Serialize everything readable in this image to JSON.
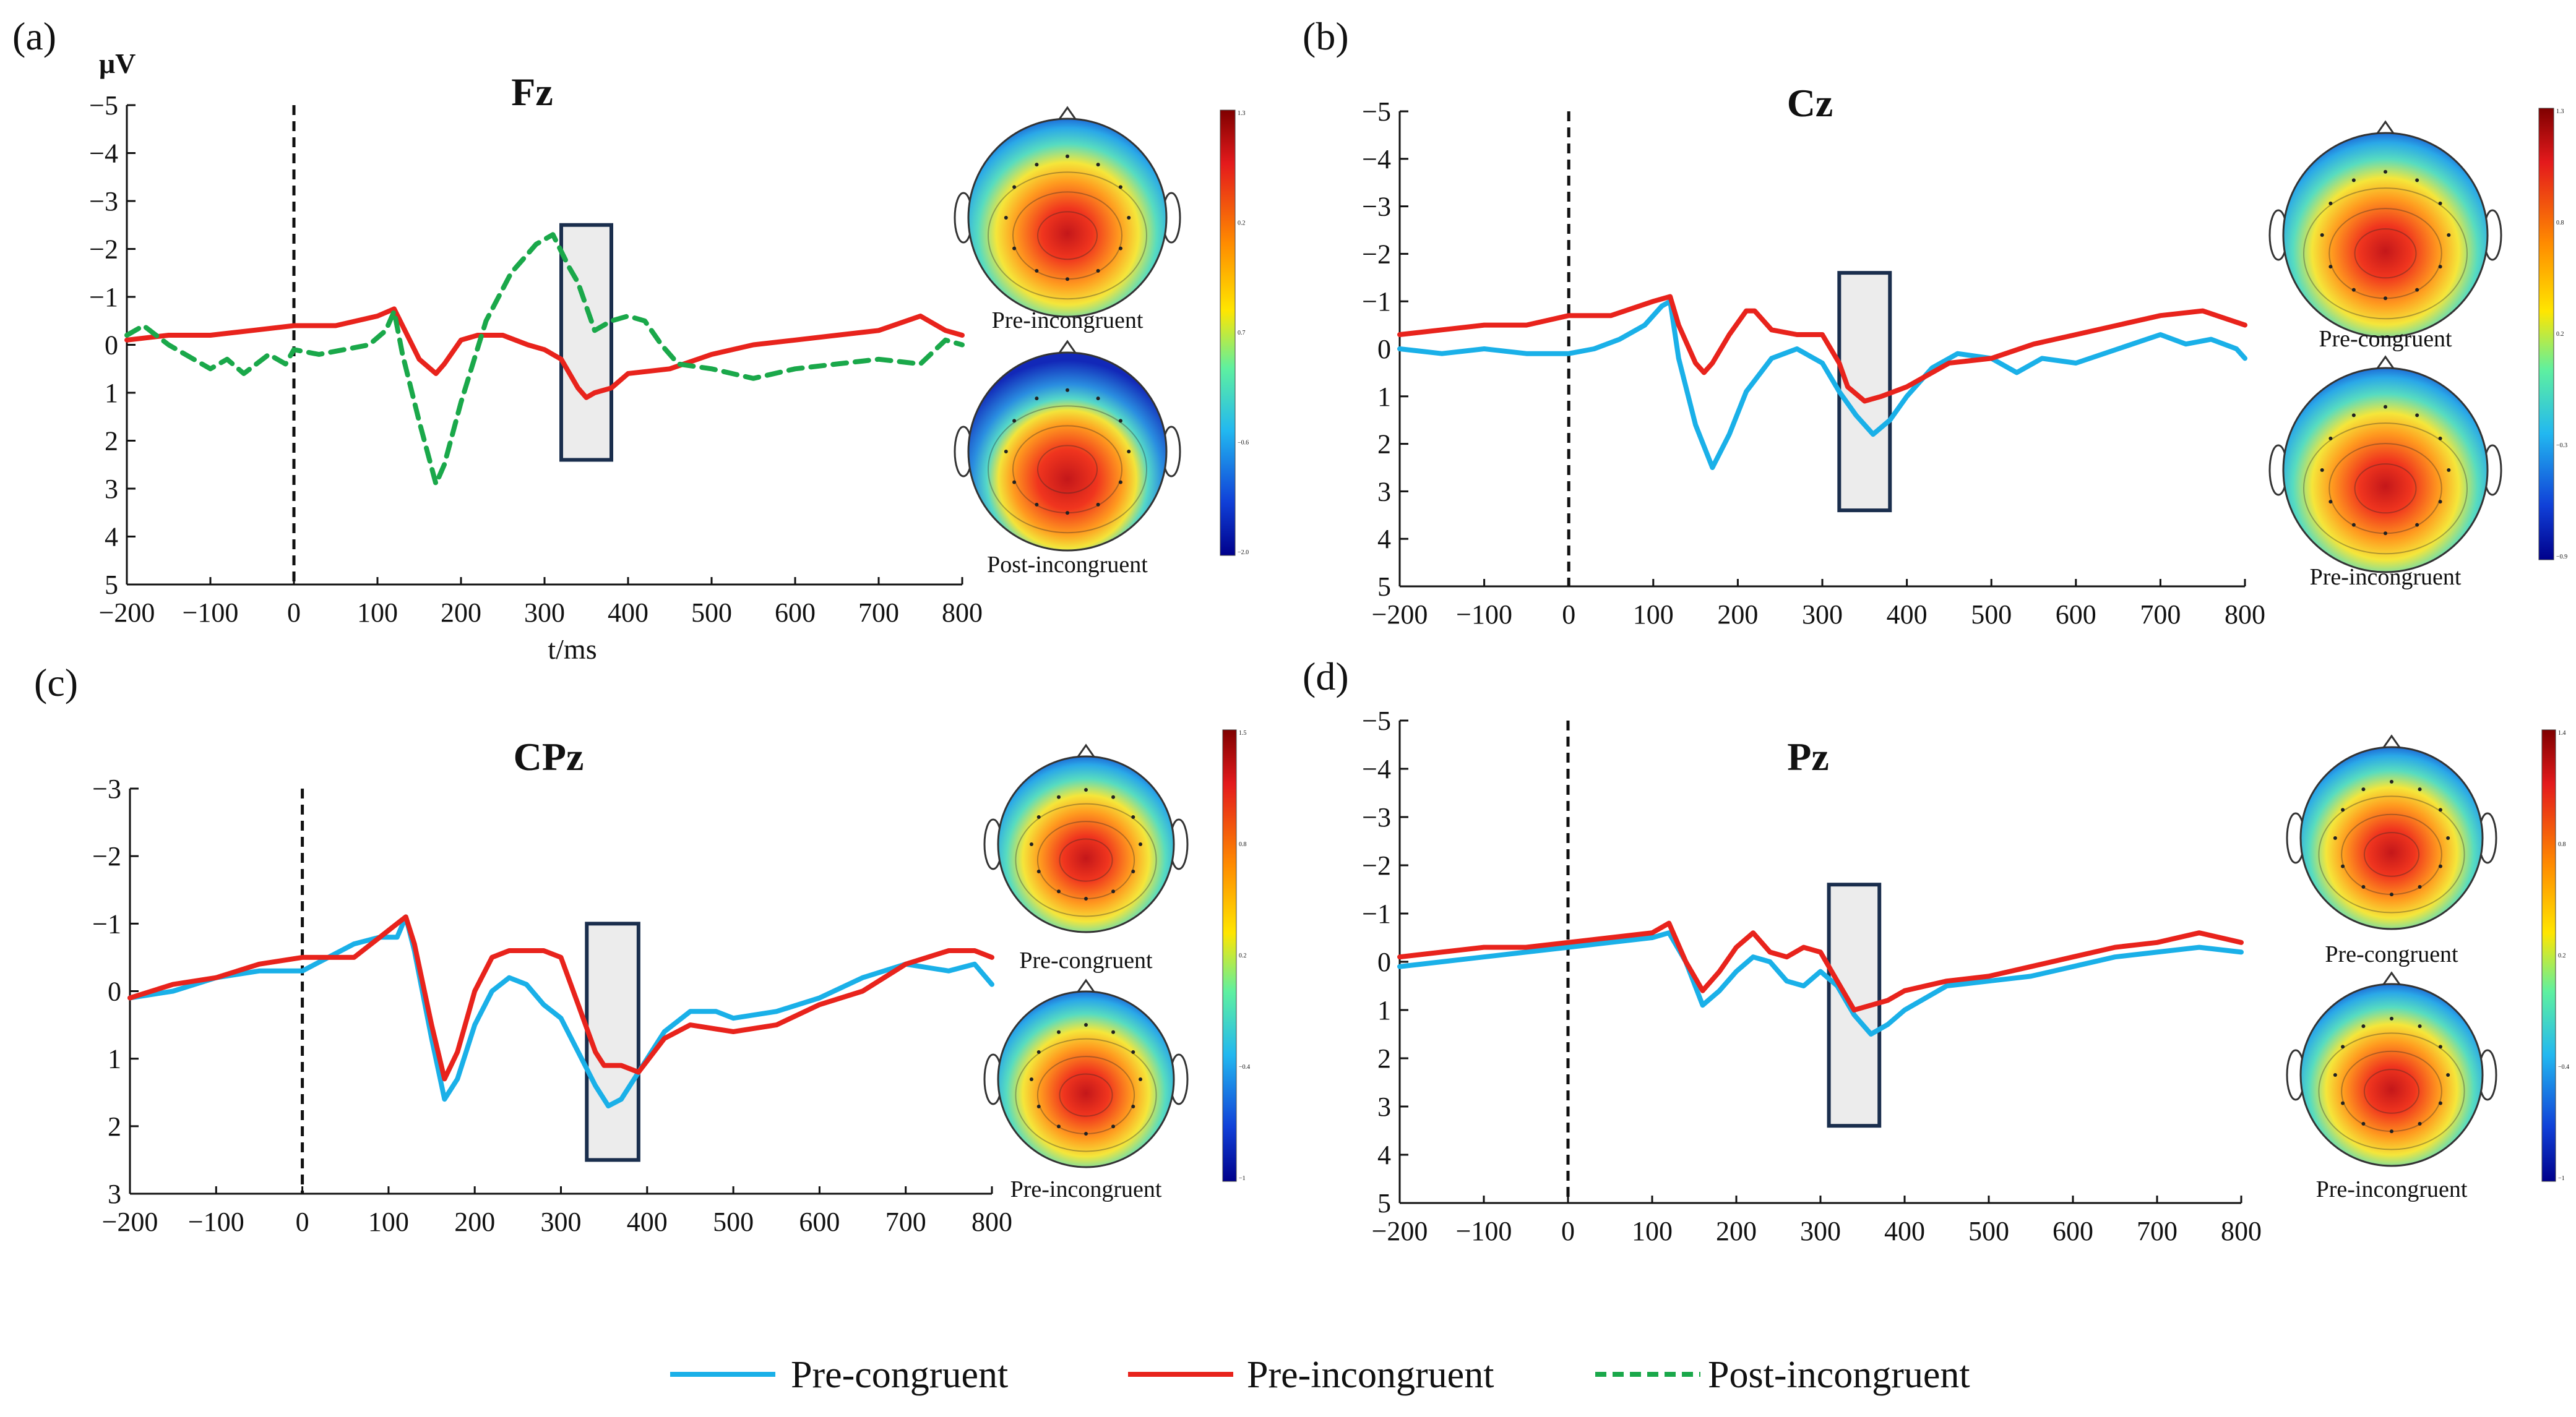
{
  "chart_data": [
    {
      "type": "line",
      "panel_label": "(a)",
      "title": "Fz",
      "ylabel": "μV",
      "xlabel": "t/ms",
      "xlim": [
        -200,
        800
      ],
      "ylim": [
        -5,
        5
      ],
      "y_inverted": true,
      "xticks": [
        "−200",
        "−100",
        "0",
        "100",
        "200",
        "300",
        "400",
        "500",
        "600",
        "700",
        "800"
      ],
      "yticks": [
        "−5",
        "−4",
        "−3",
        "−2",
        "−1",
        "0",
        "1",
        "2",
        "3",
        "4",
        "5"
      ],
      "onset_ms": 0,
      "window_ms": [
        320,
        380
      ],
      "window_uv": [
        -2.5,
        2.4
      ],
      "series": [
        {
          "name": "Pre-incongruent",
          "x": [
            -200,
            -150,
            -100,
            -50,
            0,
            50,
            100,
            120,
            130,
            150,
            170,
            180,
            200,
            220,
            250,
            280,
            300,
            320,
            340,
            350,
            360,
            380,
            400,
            450,
            500,
            550,
            600,
            650,
            700,
            750,
            780,
            800
          ],
          "y": [
            -0.1,
            -0.2,
            -0.2,
            -0.3,
            -0.4,
            -0.4,
            -0.6,
            -0.75,
            -0.4,
            0.3,
            0.6,
            0.4,
            -0.1,
            -0.2,
            -0.2,
            0,
            0.1,
            0.3,
            0.9,
            1.1,
            1.0,
            0.9,
            0.6,
            0.5,
            0.2,
            0,
            -0.1,
            -0.2,
            -0.3,
            -0.6,
            -0.3,
            -0.2
          ]
        },
        {
          "name": "Post-incongruent",
          "x": [
            -200,
            -180,
            -150,
            -120,
            -100,
            -80,
            -60,
            -30,
            -10,
            0,
            30,
            60,
            90,
            110,
            120,
            130,
            150,
            170,
            180,
            200,
            230,
            260,
            290,
            310,
            330,
            340,
            350,
            360,
            380,
            400,
            420,
            440,
            460,
            500,
            550,
            600,
            650,
            700,
            750,
            780,
            800
          ],
          "y": [
            -0.2,
            -0.4,
            0,
            0.3,
            0.5,
            0.3,
            0.6,
            0.2,
            0.4,
            0.1,
            0.2,
            0.1,
            0,
            -0.3,
            -0.7,
            0.2,
            1.6,
            2.9,
            2.5,
            1.2,
            -0.5,
            -1.5,
            -2.1,
            -2.3,
            -1.6,
            -1.3,
            -0.8,
            -0.3,
            -0.5,
            -0.6,
            -0.5,
            0,
            0.4,
            0.5,
            0.7,
            0.5,
            0.4,
            0.3,
            0.4,
            -0.1,
            0
          ]
        }
      ],
      "topomaps": [
        {
          "label": "Pre-incongruent",
          "colorbar": [
            "1.3",
            "0.2",
            "0.7",
            "−0.6",
            "−2.0"
          ]
        },
        {
          "label": "Post-incongruent"
        }
      ]
    },
    {
      "type": "line",
      "panel_label": "(b)",
      "title": "Cz",
      "xlim": [
        -200,
        800
      ],
      "ylim": [
        -5,
        5
      ],
      "y_inverted": true,
      "xticks": [
        "−200",
        "−100",
        "0",
        "100",
        "200",
        "300",
        "400",
        "500",
        "600",
        "700",
        "800"
      ],
      "yticks": [
        "−5",
        "−4",
        "−3",
        "−2",
        "−1",
        "0",
        "1",
        "2",
        "3",
        "4",
        "5"
      ],
      "onset_ms": 0,
      "window_ms": [
        320,
        380
      ],
      "window_uv": [
        -1.6,
        3.4
      ],
      "series": [
        {
          "name": "Pre-congruent",
          "x": [
            -200,
            -150,
            -100,
            -50,
            0,
            30,
            60,
            90,
            110,
            120,
            130,
            150,
            170,
            190,
            210,
            240,
            270,
            300,
            320,
            340,
            360,
            380,
            400,
            430,
            460,
            500,
            530,
            560,
            600,
            650,
            700,
            730,
            760,
            790,
            800
          ],
          "y": [
            0,
            0.1,
            0,
            0.1,
            0.1,
            0,
            -0.2,
            -0.5,
            -0.9,
            -1.0,
            0.2,
            1.6,
            2.5,
            1.8,
            0.9,
            0.2,
            0,
            0.3,
            0.9,
            1.4,
            1.8,
            1.5,
            1.0,
            0.4,
            0.1,
            0.2,
            0.5,
            0.2,
            0.3,
            0,
            -0.3,
            -0.1,
            -0.2,
            0,
            0.2
          ]
        },
        {
          "name": "Pre-incongruent",
          "x": [
            -200,
            -150,
            -100,
            -50,
            0,
            50,
            100,
            120,
            130,
            150,
            160,
            170,
            190,
            210,
            220,
            240,
            270,
            300,
            320,
            330,
            350,
            370,
            400,
            450,
            500,
            550,
            600,
            650,
            700,
            750,
            800
          ],
          "y": [
            -0.3,
            -0.4,
            -0.5,
            -0.5,
            -0.7,
            -0.7,
            -1.0,
            -1.1,
            -0.5,
            0.3,
            0.5,
            0.3,
            -0.3,
            -0.8,
            -0.8,
            -0.4,
            -0.3,
            -0.3,
            0.3,
            0.8,
            1.1,
            1.0,
            0.8,
            0.3,
            0.2,
            -0.1,
            -0.3,
            -0.5,
            -0.7,
            -0.8,
            -0.5
          ]
        }
      ],
      "topomaps": [
        {
          "label": "Pre-congruent",
          "colorbar": [
            "1.3",
            "0.8",
            "0.2",
            "−0.3",
            "−0.9"
          ]
        },
        {
          "label": "Pre-incongruent"
        }
      ]
    },
    {
      "type": "line",
      "panel_label": "(c)",
      "title": "CPz",
      "xlim": [
        -200,
        800
      ],
      "ylim": [
        -3,
        3
      ],
      "y_inverted": true,
      "xticks": [
        "−200",
        "−100",
        "0",
        "100",
        "200",
        "300",
        "400",
        "500",
        "600",
        "700",
        "800"
      ],
      "yticks": [
        "−3",
        "−2",
        "−1",
        "0",
        "1",
        "2",
        "3"
      ],
      "onset_ms": 0,
      "window_ms": [
        330,
        390
      ],
      "window_uv": [
        -1.0,
        2.5
      ],
      "series": [
        {
          "name": "Pre-congruent",
          "x": [
            -200,
            -150,
            -100,
            -50,
            0,
            30,
            60,
            90,
            110,
            120,
            130,
            150,
            165,
            180,
            200,
            220,
            240,
            260,
            280,
            300,
            320,
            340,
            355,
            370,
            390,
            420,
            450,
            480,
            500,
            550,
            600,
            650,
            700,
            750,
            780,
            800
          ],
          "y": [
            0.1,
            0,
            -0.2,
            -0.3,
            -0.3,
            -0.5,
            -0.7,
            -0.8,
            -0.8,
            -1.1,
            -0.6,
            0.7,
            1.6,
            1.3,
            0.5,
            0,
            -0.2,
            -0.1,
            0.2,
            0.4,
            0.9,
            1.4,
            1.7,
            1.6,
            1.2,
            0.6,
            0.3,
            0.3,
            0.4,
            0.3,
            0.1,
            -0.2,
            -0.4,
            -0.3,
            -0.4,
            -0.1
          ]
        },
        {
          "name": "Pre-incongruent",
          "x": [
            -200,
            -150,
            -100,
            -50,
            0,
            30,
            60,
            90,
            110,
            120,
            130,
            150,
            165,
            180,
            200,
            220,
            240,
            260,
            280,
            300,
            320,
            340,
            350,
            370,
            390,
            420,
            450,
            500,
            550,
            600,
            650,
            700,
            750,
            780,
            800
          ],
          "y": [
            0.1,
            -0.1,
            -0.2,
            -0.4,
            -0.5,
            -0.5,
            -0.5,
            -0.8,
            -1.0,
            -1.1,
            -0.7,
            0.5,
            1.3,
            0.9,
            0,
            -0.5,
            -0.6,
            -0.6,
            -0.6,
            -0.5,
            0.2,
            0.9,
            1.1,
            1.1,
            1.2,
            0.7,
            0.5,
            0.6,
            0.5,
            0.2,
            0,
            -0.4,
            -0.6,
            -0.6,
            -0.5
          ]
        }
      ],
      "topomaps": [
        {
          "label": "Pre-congruent",
          "colorbar": [
            "1.5",
            "0.8",
            "0.2",
            "−0.4",
            "−1"
          ]
        },
        {
          "label": "Pre-incongruent"
        }
      ]
    },
    {
      "type": "line",
      "panel_label": "(d)",
      "title": "Pz",
      "xlim": [
        -200,
        800
      ],
      "ylim": [
        -5,
        5
      ],
      "y_inverted": true,
      "xticks": [
        "−200",
        "−100",
        "0",
        "100",
        "200",
        "300",
        "400",
        "500",
        "600",
        "700",
        "800"
      ],
      "yticks": [
        "−5",
        "−4",
        "−3",
        "−2",
        "−1",
        "0",
        "1",
        "2",
        "3",
        "4",
        "5"
      ],
      "onset_ms": 0,
      "window_ms": [
        310,
        370
      ],
      "window_uv": [
        -1.6,
        3.4
      ],
      "series": [
        {
          "name": "Pre-congruent",
          "x": [
            -200,
            -150,
            -100,
            -50,
            0,
            50,
            100,
            120,
            140,
            160,
            180,
            200,
            220,
            240,
            260,
            280,
            300,
            320,
            340,
            360,
            380,
            400,
            450,
            500,
            550,
            600,
            650,
            700,
            750,
            800
          ],
          "y": [
            0.1,
            0,
            -0.1,
            -0.2,
            -0.3,
            -0.4,
            -0.5,
            -0.6,
            0,
            0.9,
            0.6,
            0.2,
            -0.1,
            0,
            0.4,
            0.5,
            0.2,
            0.5,
            1.1,
            1.5,
            1.3,
            1.0,
            0.5,
            0.4,
            0.3,
            0.1,
            -0.1,
            -0.2,
            -0.3,
            -0.2
          ]
        },
        {
          "name": "Pre-incongruent",
          "x": [
            -200,
            -150,
            -100,
            -50,
            0,
            50,
            100,
            120,
            140,
            160,
            180,
            200,
            220,
            240,
            260,
            280,
            300,
            320,
            340,
            360,
            380,
            400,
            450,
            500,
            550,
            600,
            650,
            700,
            750,
            800
          ],
          "y": [
            -0.1,
            -0.2,
            -0.3,
            -0.3,
            -0.4,
            -0.5,
            -0.6,
            -0.8,
            0,
            0.6,
            0.2,
            -0.3,
            -0.6,
            -0.2,
            -0.1,
            -0.3,
            -0.2,
            0.4,
            1.0,
            0.9,
            0.8,
            0.6,
            0.4,
            0.3,
            0.1,
            -0.1,
            -0.3,
            -0.4,
            -0.6,
            -0.4
          ]
        }
      ],
      "topomaps": [
        {
          "label": "Pre-congruent",
          "colorbar": [
            "1.4",
            "0.8",
            "0.2",
            "−0.4",
            "−1"
          ]
        },
        {
          "label": "Pre-incongruent"
        }
      ]
    }
  ],
  "legend": [
    {
      "name": "Pre-congruent",
      "color": "#1ab0e8",
      "dash": "solid"
    },
    {
      "name": "Pre-incongruent",
      "color": "#e8231c",
      "dash": "solid"
    },
    {
      "name": "Post-incongruent",
      "color": "#1aa84a",
      "dash": "dashed"
    }
  ]
}
